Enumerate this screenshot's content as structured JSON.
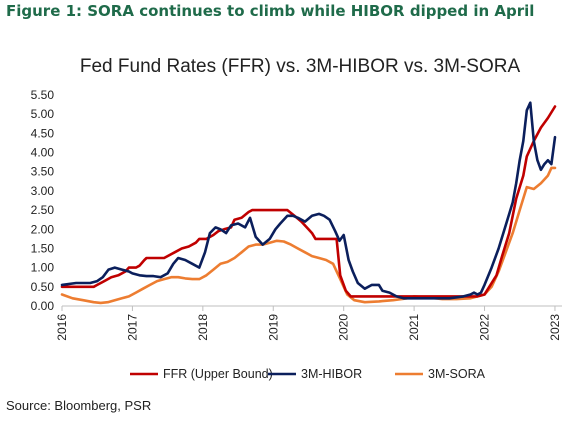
{
  "figure_title": "Figure 1: SORA continues to climb while HIBOR dipped in April",
  "source_note": "Source: Bloomberg, PSR",
  "chart_data": {
    "type": "line",
    "title": "Fed Fund Rates (FFR) vs. 3M-HIBOR vs. 3M-SORA",
    "xlabel": "",
    "ylabel": "",
    "ylim": [
      0,
      5.5
    ],
    "yticks": [
      "0.00",
      "0.50",
      "1.00",
      "1.50",
      "2.00",
      "2.50",
      "3.00",
      "3.50",
      "4.00",
      "4.50",
      "5.00",
      "5.50"
    ],
    "xlim": [
      2016,
      2023.1
    ],
    "xticks": [
      "2016",
      "2017",
      "2018",
      "2019",
      "2020",
      "2021",
      "2022",
      "2023"
    ],
    "grid": false,
    "legend_position": "bottom",
    "series": [
      {
        "name": "FFR (Upper Bound)",
        "color": "#c00000",
        "x": [
          2016.0,
          2016.45,
          2016.5,
          2016.6,
          2016.7,
          2016.8,
          2016.9,
          2016.95,
          2017.05,
          2017.1,
          2017.17,
          2017.2,
          2017.3,
          2017.45,
          2017.5,
          2017.6,
          2017.7,
          2017.8,
          2017.9,
          2017.95,
          2018.05,
          2018.15,
          2018.22,
          2018.3,
          2018.4,
          2018.45,
          2018.55,
          2018.65,
          2018.7,
          2018.8,
          2018.9,
          2018.97,
          2019.1,
          2019.2,
          2019.3,
          2019.4,
          2019.5,
          2019.55,
          2019.6,
          2019.7,
          2019.8,
          2019.9,
          2019.95,
          2020.03,
          2020.1,
          2020.17,
          2020.22,
          2020.3,
          2020.5,
          2020.7,
          2020.9,
          2021.0,
          2021.3,
          2021.5,
          2021.7,
          2021.9,
          2022.0,
          2022.17,
          2022.25,
          2022.35,
          2022.45,
          2022.55,
          2022.6,
          2022.7,
          2022.8,
          2022.9,
          2023.0
        ],
        "values": [
          0.5,
          0.5,
          0.55,
          0.65,
          0.75,
          0.8,
          0.9,
          1.0,
          1.0,
          1.05,
          1.2,
          1.25,
          1.25,
          1.25,
          1.3,
          1.4,
          1.5,
          1.55,
          1.65,
          1.75,
          1.75,
          1.85,
          1.95,
          2.0,
          2.05,
          2.25,
          2.3,
          2.45,
          2.5,
          2.5,
          2.5,
          2.5,
          2.5,
          2.5,
          2.35,
          2.2,
          2.0,
          1.9,
          1.75,
          1.75,
          1.75,
          1.75,
          0.8,
          0.4,
          0.25,
          0.25,
          0.25,
          0.25,
          0.25,
          0.25,
          0.25,
          0.25,
          0.25,
          0.25,
          0.25,
          0.25,
          0.3,
          0.8,
          1.3,
          1.9,
          2.8,
          3.4,
          3.9,
          4.3,
          4.65,
          4.9,
          5.2
        ]
      },
      {
        "name": "3M-HIBOR",
        "color": "#0b1f5c",
        "x": [
          2016.0,
          2016.2,
          2016.4,
          2016.5,
          2016.58,
          2016.66,
          2016.75,
          2016.85,
          2016.95,
          2017.0,
          2017.1,
          2017.2,
          2017.3,
          2017.4,
          2017.5,
          2017.58,
          2017.65,
          2017.75,
          2017.85,
          2017.95,
          2018.03,
          2018.1,
          2018.18,
          2018.25,
          2018.33,
          2018.4,
          2018.5,
          2018.6,
          2018.67,
          2018.75,
          2018.85,
          2018.95,
          2019.03,
          2019.1,
          2019.2,
          2019.28,
          2019.35,
          2019.45,
          2019.55,
          2019.65,
          2019.72,
          2019.8,
          2019.88,
          2019.94,
          2020.0,
          2020.07,
          2020.13,
          2020.2,
          2020.3,
          2020.4,
          2020.5,
          2020.55,
          2020.65,
          2020.75,
          2020.85,
          2020.95,
          2021.1,
          2021.3,
          2021.5,
          2021.7,
          2021.8,
          2021.85,
          2021.9,
          2021.95,
          2022.0,
          2022.1,
          2022.2,
          2022.3,
          2022.4,
          2022.45,
          2022.5,
          2022.55,
          2022.6,
          2022.65,
          2022.7,
          2022.75,
          2022.8,
          2022.85,
          2022.9,
          2022.95,
          2023.0
        ],
        "values": [
          0.55,
          0.6,
          0.6,
          0.65,
          0.75,
          0.95,
          1.0,
          0.95,
          0.9,
          0.85,
          0.8,
          0.78,
          0.78,
          0.75,
          0.85,
          1.1,
          1.25,
          1.2,
          1.1,
          1.0,
          1.4,
          1.9,
          2.05,
          2.0,
          1.9,
          2.1,
          2.15,
          2.05,
          2.3,
          1.8,
          1.6,
          1.75,
          2.0,
          2.15,
          2.35,
          2.35,
          2.3,
          2.2,
          2.35,
          2.4,
          2.35,
          2.25,
          1.95,
          1.7,
          1.85,
          1.2,
          0.9,
          0.6,
          0.45,
          0.55,
          0.55,
          0.4,
          0.35,
          0.25,
          0.2,
          0.2,
          0.2,
          0.2,
          0.2,
          0.25,
          0.3,
          0.35,
          0.3,
          0.35,
          0.55,
          1.0,
          1.5,
          2.1,
          2.7,
          3.2,
          3.8,
          4.3,
          5.1,
          5.3,
          4.3,
          3.8,
          3.55,
          3.7,
          3.8,
          3.7,
          4.4
        ]
      },
      {
        "name": "3M-SORA",
        "color": "#ed7d31",
        "x": [
          2016.0,
          2016.15,
          2016.3,
          2016.45,
          2016.55,
          2016.65,
          2016.75,
          2016.85,
          2016.95,
          2017.05,
          2017.15,
          2017.25,
          2017.35,
          2017.45,
          2017.55,
          2017.65,
          2017.75,
          2017.85,
          2017.95,
          2018.05,
          2018.15,
          2018.25,
          2018.35,
          2018.45,
          2018.55,
          2018.65,
          2018.75,
          2018.85,
          2018.95,
          2019.05,
          2019.15,
          2019.25,
          2019.35,
          2019.45,
          2019.55,
          2019.65,
          2019.75,
          2019.85,
          2019.95,
          2020.05,
          2020.15,
          2020.3,
          2020.5,
          2020.7,
          2020.9,
          2021.0,
          2021.2,
          2021.4,
          2021.6,
          2021.8,
          2021.9,
          2022.0,
          2022.1,
          2022.2,
          2022.3,
          2022.4,
          2022.5,
          2022.6,
          2022.7,
          2022.8,
          2022.9,
          2022.95,
          2023.0
        ],
        "values": [
          0.3,
          0.2,
          0.15,
          0.1,
          0.08,
          0.1,
          0.15,
          0.2,
          0.25,
          0.35,
          0.45,
          0.55,
          0.65,
          0.7,
          0.75,
          0.75,
          0.72,
          0.7,
          0.7,
          0.8,
          0.95,
          1.1,
          1.15,
          1.25,
          1.4,
          1.55,
          1.6,
          1.6,
          1.65,
          1.7,
          1.68,
          1.6,
          1.5,
          1.4,
          1.3,
          1.25,
          1.2,
          1.1,
          0.7,
          0.3,
          0.15,
          0.1,
          0.12,
          0.15,
          0.2,
          0.25,
          0.22,
          0.18,
          0.18,
          0.2,
          0.25,
          0.3,
          0.5,
          0.9,
          1.4,
          1.9,
          2.5,
          3.1,
          3.05,
          3.2,
          3.4,
          3.6,
          3.6
        ]
      }
    ]
  }
}
